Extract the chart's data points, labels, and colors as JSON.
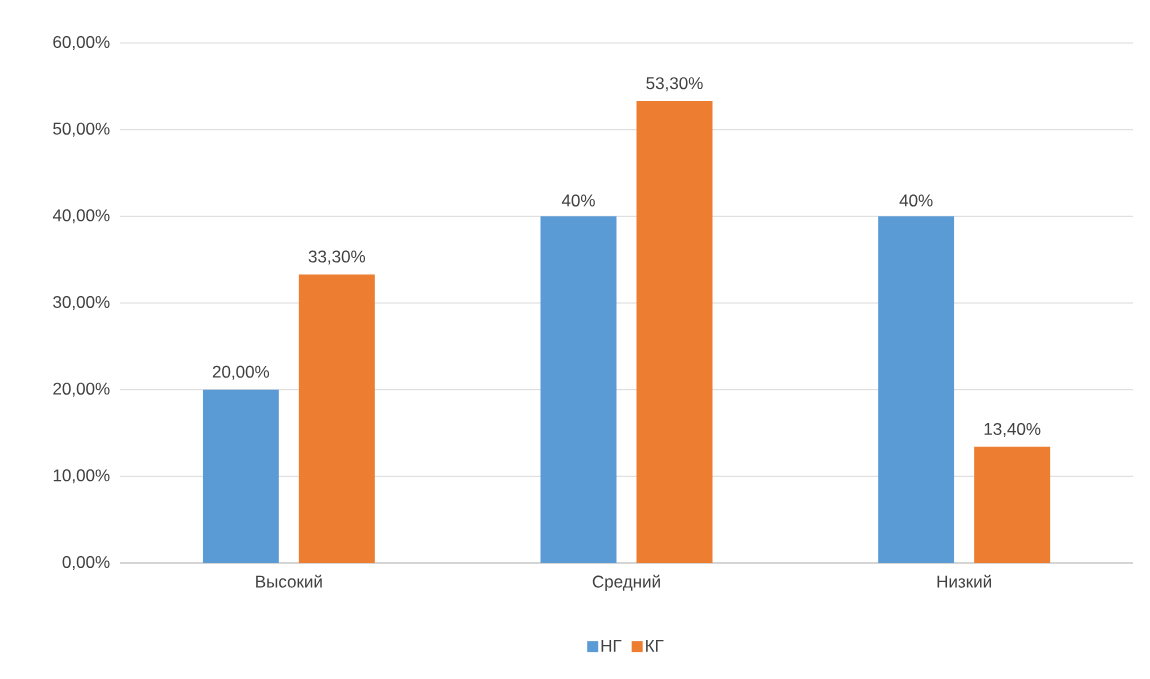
{
  "chart_data": {
    "type": "bar",
    "categories": [
      "Высокий",
      "Средний",
      "Низкий"
    ],
    "series": [
      {
        "name": "НГ",
        "color": "#5b9bd5",
        "values": [
          20,
          40,
          40
        ],
        "value_labels": [
          "20,00%",
          "40%",
          "40%"
        ]
      },
      {
        "name": "КГ",
        "color": "#ed7d31",
        "values": [
          33.3,
          53.3,
          13.4
        ],
        "value_labels": [
          "33,30%",
          "53,30%",
          "13,40%"
        ]
      }
    ],
    "ylim": [
      0,
      60
    ],
    "yticks": [
      {
        "value": 0,
        "label": "0,00%"
      },
      {
        "value": 10,
        "label": "10,00%"
      },
      {
        "value": 20,
        "label": "20,00%"
      },
      {
        "value": 30,
        "label": "30,00%"
      },
      {
        "value": 40,
        "label": "40,00%"
      },
      {
        "value": 50,
        "label": "50,00%"
      },
      {
        "value": 60,
        "label": "60,00%"
      }
    ],
    "grid": "y",
    "legend": "bottom"
  }
}
